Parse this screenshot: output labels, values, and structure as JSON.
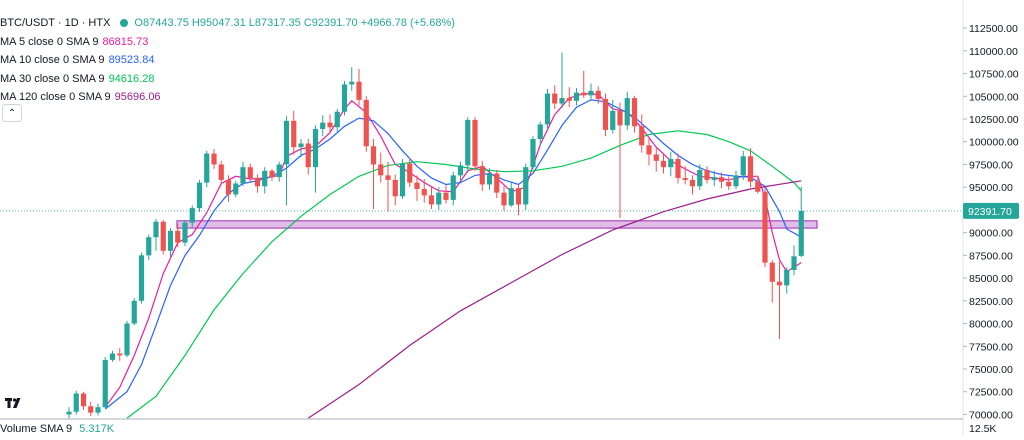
{
  "header": {
    "symbol": "BTC/USDT · 1D · HTX",
    "ohlc": "O87443.75 H95047.31 L87317.35 C92391.70 +4966.78 (+5.68%)"
  },
  "indicators": [
    {
      "label": "MA 5 close 0 SMA 9",
      "value": "86815.73",
      "color": "#e91e9c"
    },
    {
      "label": "MA 10 close 0 SMA 9",
      "value": "89523.84",
      "color": "#2962ff"
    },
    {
      "label": "MA 30 close 0 SMA 9",
      "value": "94616.28",
      "color": "#00c853"
    },
    {
      "label": "MA 120 close 0 SMA 9",
      "value": "95696.06",
      "color": "#9c1f8c"
    }
  ],
  "collapse_icon": "chevron-up-icon",
  "volume": {
    "label": "Volume SMA 9",
    "value": "5.317K",
    "scale_label": "12.5K"
  },
  "price_axis": {
    "ticks": [
      "112500.00",
      "110000.00",
      "107500.00",
      "105000.00",
      "102500.00",
      "100000.00",
      "97500.00",
      "95000.00",
      "92500.00",
      "90000.00",
      "87500.00",
      "85000.00",
      "82500.00",
      "80000.00",
      "77500.00",
      "75000.00",
      "72500.00",
      "70000.00"
    ],
    "last_price": "92391.70"
  },
  "colors": {
    "up": "#26a69a",
    "down": "#ef5350",
    "zone_fill": "#e1bee7",
    "zone_border": "#ab47bc"
  },
  "chart_data": {
    "type": "candlestick",
    "symbol": "BTC/USDT",
    "interval": "1D",
    "ylim": [
      69500,
      113500
    ],
    "last_close": 92391.7,
    "support_zone": [
      90500,
      91300
    ],
    "candles": [
      {
        "o": 70000,
        "h": 70800,
        "l": 69600,
        "c": 70300
      },
      {
        "o": 70300,
        "h": 72600,
        "l": 70000,
        "c": 72300
      },
      {
        "o": 72300,
        "h": 72500,
        "l": 70500,
        "c": 70900
      },
      {
        "o": 70900,
        "h": 71400,
        "l": 69800,
        "c": 70200
      },
      {
        "o": 70200,
        "h": 71200,
        "l": 69900,
        "c": 70800
      },
      {
        "o": 70800,
        "h": 76300,
        "l": 70700,
        "c": 76000
      },
      {
        "o": 76000,
        "h": 77000,
        "l": 75800,
        "c": 76700
      },
      {
        "o": 76700,
        "h": 77300,
        "l": 75900,
        "c": 76500
      },
      {
        "o": 76500,
        "h": 80300,
        "l": 76300,
        "c": 80000
      },
      {
        "o": 80000,
        "h": 82800,
        "l": 79800,
        "c": 82500
      },
      {
        "o": 82500,
        "h": 87800,
        "l": 82200,
        "c": 87500
      },
      {
        "o": 87500,
        "h": 89800,
        "l": 87000,
        "c": 89500
      },
      {
        "o": 89500,
        "h": 91500,
        "l": 88000,
        "c": 91200
      },
      {
        "o": 91200,
        "h": 91400,
        "l": 87600,
        "c": 88000
      },
      {
        "o": 88000,
        "h": 90500,
        "l": 87300,
        "c": 90200
      },
      {
        "o": 90200,
        "h": 91000,
        "l": 88400,
        "c": 88900
      },
      {
        "o": 88900,
        "h": 91400,
        "l": 88500,
        "c": 91100
      },
      {
        "o": 91100,
        "h": 93000,
        "l": 90600,
        "c": 92700
      },
      {
        "o": 92700,
        "h": 95800,
        "l": 92300,
        "c": 95500
      },
      {
        "o": 95500,
        "h": 99000,
        "l": 95000,
        "c": 98700
      },
      {
        "o": 98700,
        "h": 99200,
        "l": 97000,
        "c": 97500
      },
      {
        "o": 97500,
        "h": 97900,
        "l": 95300,
        "c": 95800
      },
      {
        "o": 95800,
        "h": 96300,
        "l": 93400,
        "c": 94200
      },
      {
        "o": 94200,
        "h": 95700,
        "l": 93900,
        "c": 95400
      },
      {
        "o": 95400,
        "h": 97800,
        "l": 95100,
        "c": 97200
      },
      {
        "o": 97200,
        "h": 97600,
        "l": 95500,
        "c": 96000
      },
      {
        "o": 96000,
        "h": 96400,
        "l": 94400,
        "c": 95100
      },
      {
        "o": 95100,
        "h": 97200,
        "l": 94300,
        "c": 96800
      },
      {
        "o": 96800,
        "h": 97000,
        "l": 95700,
        "c": 96100
      },
      {
        "o": 96100,
        "h": 97800,
        "l": 95600,
        "c": 97500
      },
      {
        "o": 97500,
        "h": 102800,
        "l": 93000,
        "c": 102300
      },
      {
        "o": 102300,
        "h": 103400,
        "l": 98600,
        "c": 99400
      },
      {
        "o": 99400,
        "h": 100300,
        "l": 98300,
        "c": 99800
      },
      {
        "o": 99800,
        "h": 100300,
        "l": 96400,
        "c": 97200
      },
      {
        "o": 97200,
        "h": 101800,
        "l": 94400,
        "c": 101400
      },
      {
        "o": 101400,
        "h": 102900,
        "l": 100600,
        "c": 102100
      },
      {
        "o": 102100,
        "h": 103000,
        "l": 100900,
        "c": 101600
      },
      {
        "o": 101600,
        "h": 103600,
        "l": 100900,
        "c": 103300
      },
      {
        "o": 103300,
        "h": 106700,
        "l": 102900,
        "c": 106300
      },
      {
        "o": 106300,
        "h": 108200,
        "l": 105600,
        "c": 106600
      },
      {
        "o": 106600,
        "h": 108000,
        "l": 104000,
        "c": 104600
      },
      {
        "o": 104600,
        "h": 105000,
        "l": 98900,
        "c": 99500
      },
      {
        "o": 99500,
        "h": 100300,
        "l": 92600,
        "c": 97500
      },
      {
        "o": 97500,
        "h": 98800,
        "l": 95500,
        "c": 96300
      },
      {
        "o": 96300,
        "h": 97800,
        "l": 92300,
        "c": 95800
      },
      {
        "o": 95800,
        "h": 96400,
        "l": 93000,
        "c": 94000
      },
      {
        "o": 94000,
        "h": 98100,
        "l": 93700,
        "c": 97600
      },
      {
        "o": 97600,
        "h": 98200,
        "l": 95000,
        "c": 95500
      },
      {
        "o": 95500,
        "h": 96300,
        "l": 93500,
        "c": 94800
      },
      {
        "o": 94800,
        "h": 95900,
        "l": 93300,
        "c": 94100
      },
      {
        "o": 94100,
        "h": 95000,
        "l": 92600,
        "c": 93100
      },
      {
        "o": 93100,
        "h": 95000,
        "l": 92500,
        "c": 94400
      },
      {
        "o": 94400,
        "h": 95200,
        "l": 93200,
        "c": 93600
      },
      {
        "o": 93600,
        "h": 96700,
        "l": 93000,
        "c": 96300
      },
      {
        "o": 96300,
        "h": 97800,
        "l": 95700,
        "c": 97400
      },
      {
        "o": 97400,
        "h": 102700,
        "l": 96600,
        "c": 102400
      },
      {
        "o": 102400,
        "h": 102700,
        "l": 96800,
        "c": 97300
      },
      {
        "o": 97300,
        "h": 97900,
        "l": 94600,
        "c": 95300
      },
      {
        "o": 95300,
        "h": 97100,
        "l": 94700,
        "c": 96500
      },
      {
        "o": 96500,
        "h": 96900,
        "l": 93800,
        "c": 94400
      },
      {
        "o": 94400,
        "h": 95100,
        "l": 92400,
        "c": 93000
      },
      {
        "o": 93000,
        "h": 95500,
        "l": 92800,
        "c": 94900
      },
      {
        "o": 94900,
        "h": 95300,
        "l": 91900,
        "c": 93100
      },
      {
        "o": 93100,
        "h": 97600,
        "l": 92500,
        "c": 97200
      },
      {
        "o": 97200,
        "h": 100600,
        "l": 97000,
        "c": 100300
      },
      {
        "o": 100300,
        "h": 102200,
        "l": 99500,
        "c": 101900
      },
      {
        "o": 101900,
        "h": 105800,
        "l": 101400,
        "c": 105300
      },
      {
        "o": 105300,
        "h": 106200,
        "l": 103600,
        "c": 104200
      },
      {
        "o": 104200,
        "h": 109800,
        "l": 103700,
        "c": 104800
      },
      {
        "o": 104800,
        "h": 106000,
        "l": 103800,
        "c": 104500
      },
      {
        "o": 104500,
        "h": 105900,
        "l": 104000,
        "c": 105400
      },
      {
        "o": 105400,
        "h": 107800,
        "l": 104800,
        "c": 105100
      },
      {
        "o": 105100,
        "h": 106400,
        "l": 104500,
        "c": 105600
      },
      {
        "o": 105600,
        "h": 106100,
        "l": 104200,
        "c": 104700
      },
      {
        "o": 104700,
        "h": 105300,
        "l": 100600,
        "c": 101300
      },
      {
        "o": 101300,
        "h": 104600,
        "l": 100900,
        "c": 103400
      },
      {
        "o": 103400,
        "h": 104300,
        "l": 91600,
        "c": 101800
      },
      {
        "o": 101800,
        "h": 105500,
        "l": 101300,
        "c": 104800
      },
      {
        "o": 104800,
        "h": 105000,
        "l": 101000,
        "c": 101700
      },
      {
        "o": 101700,
        "h": 103000,
        "l": 98800,
        "c": 99600
      },
      {
        "o": 99600,
        "h": 100300,
        "l": 97400,
        "c": 98600
      },
      {
        "o": 98600,
        "h": 99500,
        "l": 96700,
        "c": 97900
      },
      {
        "o": 97900,
        "h": 98600,
        "l": 96500,
        "c": 97200
      },
      {
        "o": 97200,
        "h": 98900,
        "l": 96200,
        "c": 98100
      },
      {
        "o": 98100,
        "h": 98700,
        "l": 95400,
        "c": 96000
      },
      {
        "o": 96000,
        "h": 97300,
        "l": 95300,
        "c": 95800
      },
      {
        "o": 95800,
        "h": 96300,
        "l": 94200,
        "c": 95100
      },
      {
        "o": 95100,
        "h": 97500,
        "l": 94700,
        "c": 96900
      },
      {
        "o": 96900,
        "h": 97300,
        "l": 95400,
        "c": 95800
      },
      {
        "o": 95800,
        "h": 96800,
        "l": 95100,
        "c": 96100
      },
      {
        "o": 96100,
        "h": 96600,
        "l": 94900,
        "c": 95600
      },
      {
        "o": 95600,
        "h": 96200,
        "l": 94700,
        "c": 95100
      },
      {
        "o": 95100,
        "h": 96800,
        "l": 94800,
        "c": 96300
      },
      {
        "o": 96300,
        "h": 99000,
        "l": 95800,
        "c": 98400
      },
      {
        "o": 98400,
        "h": 99300,
        "l": 95000,
        "c": 95600
      },
      {
        "o": 95600,
        "h": 96200,
        "l": 94300,
        "c": 94500
      },
      {
        "o": 94500,
        "h": 95000,
        "l": 86200,
        "c": 86700
      },
      {
        "o": 86700,
        "h": 87000,
        "l": 82300,
        "c": 84600
      },
      {
        "o": 84600,
        "h": 86800,
        "l": 78300,
        "c": 84200
      },
      {
        "o": 84200,
        "h": 86200,
        "l": 83300,
        "c": 85900
      },
      {
        "o": 85900,
        "h": 88600,
        "l": 85300,
        "c": 87400
      },
      {
        "o": 87443.75,
        "h": 95047.31,
        "l": 87317.35,
        "c": 92391.7
      }
    ],
    "ma_series": [
      {
        "name": "MA 5",
        "color": "#e91e9c",
        "points": [
          [
            5,
            70800
          ],
          [
            7,
            73000
          ],
          [
            9,
            76500
          ],
          [
            11,
            80600
          ],
          [
            13,
            85500
          ],
          [
            15,
            88900
          ],
          [
            17,
            89800
          ],
          [
            19,
            92200
          ],
          [
            21,
            95400
          ],
          [
            23,
            96200
          ],
          [
            25,
            95900
          ],
          [
            27,
            96000
          ],
          [
            29,
            96300
          ],
          [
            30,
            98400
          ],
          [
            32,
            99200
          ],
          [
            34,
            99500
          ],
          [
            36,
            101000
          ],
          [
            38,
            103600
          ],
          [
            39,
            104500
          ],
          [
            41,
            103200
          ],
          [
            43,
            100600
          ],
          [
            45,
            97500
          ],
          [
            47,
            96600
          ],
          [
            49,
            95500
          ],
          [
            51,
            94600
          ],
          [
            53,
            94500
          ],
          [
            55,
            96800
          ],
          [
            57,
            97300
          ],
          [
            59,
            96000
          ],
          [
            61,
            94500
          ],
          [
            63,
            95000
          ],
          [
            65,
            99700
          ],
          [
            67,
            103000
          ],
          [
            69,
            104800
          ],
          [
            71,
            105300
          ],
          [
            73,
            105200
          ],
          [
            75,
            103600
          ],
          [
            77,
            103300
          ],
          [
            79,
            101500
          ],
          [
            81,
            99400
          ],
          [
            83,
            97900
          ],
          [
            85,
            97000
          ],
          [
            87,
            96200
          ],
          [
            89,
            96000
          ],
          [
            91,
            95800
          ],
          [
            93,
            96200
          ],
          [
            95,
            96200
          ],
          [
            96,
            93900
          ],
          [
            97,
            90000
          ],
          [
            98,
            87000
          ],
          [
            99,
            85700
          ],
          [
            101,
            86700
          ]
        ]
      },
      {
        "name": "MA 10",
        "color": "#2962ff",
        "points": [
          [
            5,
            70600
          ],
          [
            8,
            72500
          ],
          [
            10,
            75500
          ],
          [
            12,
            79800
          ],
          [
            14,
            84200
          ],
          [
            16,
            87500
          ],
          [
            18,
            89700
          ],
          [
            20,
            92400
          ],
          [
            22,
            94300
          ],
          [
            24,
            95400
          ],
          [
            26,
            95700
          ],
          [
            28,
            96200
          ],
          [
            30,
            97100
          ],
          [
            32,
            98500
          ],
          [
            34,
            99200
          ],
          [
            36,
            100300
          ],
          [
            38,
            101700
          ],
          [
            40,
            102600
          ],
          [
            42,
            102300
          ],
          [
            44,
            100900
          ],
          [
            46,
            99000
          ],
          [
            48,
            97300
          ],
          [
            50,
            96000
          ],
          [
            52,
            95300
          ],
          [
            54,
            95500
          ],
          [
            56,
            96300
          ],
          [
            58,
            96500
          ],
          [
            60,
            95800
          ],
          [
            62,
            95300
          ],
          [
            64,
            96500
          ],
          [
            66,
            99100
          ],
          [
            68,
            101800
          ],
          [
            70,
            103800
          ],
          [
            72,
            104600
          ],
          [
            74,
            104400
          ],
          [
            76,
            103600
          ],
          [
            78,
            102700
          ],
          [
            80,
            101300
          ],
          [
            82,
            99800
          ],
          [
            84,
            98500
          ],
          [
            86,
            97500
          ],
          [
            88,
            96800
          ],
          [
            90,
            96400
          ],
          [
            92,
            96200
          ],
          [
            94,
            96100
          ],
          [
            96,
            95100
          ],
          [
            98,
            92300
          ],
          [
            99,
            90400
          ],
          [
            101,
            89500
          ]
        ]
      },
      {
        "name": "MA 30",
        "color": "#00c853",
        "points": [
          [
            8,
            69600
          ],
          [
            12,
            72000
          ],
          [
            16,
            76500
          ],
          [
            20,
            81500
          ],
          [
            24,
            85500
          ],
          [
            28,
            89000
          ],
          [
            32,
            91800
          ],
          [
            36,
            94200
          ],
          [
            40,
            96200
          ],
          [
            44,
            97400
          ],
          [
            48,
            97800
          ],
          [
            52,
            97500
          ],
          [
            56,
            97000
          ],
          [
            60,
            96700
          ],
          [
            64,
            96800
          ],
          [
            68,
            97300
          ],
          [
            72,
            98200
          ],
          [
            76,
            99600
          ],
          [
            80,
            100800
          ],
          [
            84,
            101200
          ],
          [
            88,
            100800
          ],
          [
            91,
            100000
          ],
          [
            94,
            99000
          ],
          [
            97,
            97300
          ],
          [
            100,
            95500
          ],
          [
            101,
            94600
          ]
        ]
      },
      {
        "name": "MA 120",
        "color": "#9c1f8c",
        "points": [
          [
            33,
            69600
          ],
          [
            40,
            73300
          ],
          [
            47,
            77600
          ],
          [
            54,
            81400
          ],
          [
            61,
            84500
          ],
          [
            68,
            87600
          ],
          [
            75,
            90300
          ],
          [
            82,
            92300
          ],
          [
            88,
            93700
          ],
          [
            94,
            94800
          ],
          [
            101,
            95700
          ]
        ]
      }
    ]
  }
}
